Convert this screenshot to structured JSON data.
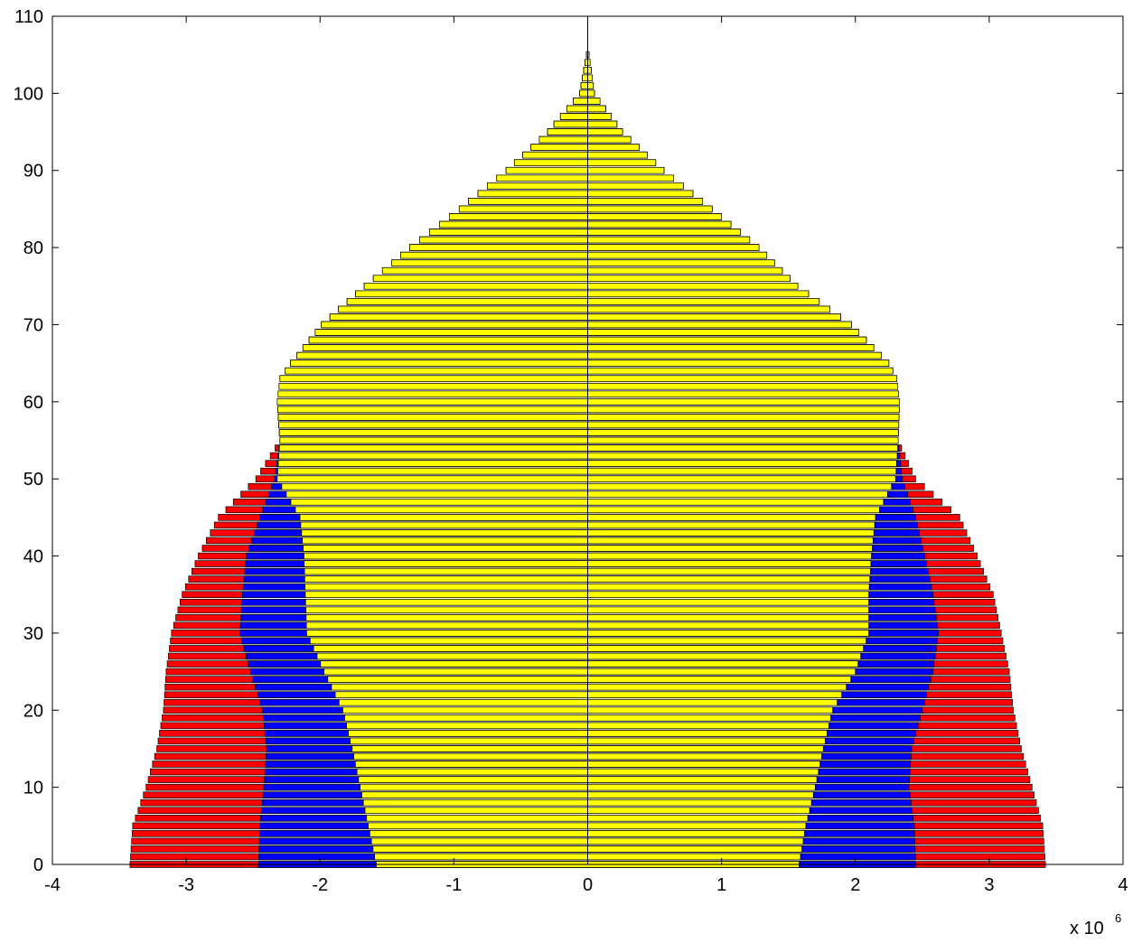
{
  "chart_data": {
    "type": "bar",
    "orientation": "horizontal",
    "stacked": "overlaid",
    "title": "",
    "xlabel": "",
    "ylabel": "",
    "x_multiplier_label": "x 10",
    "x_multiplier_exponent": "6",
    "xlim": [
      -4,
      4
    ],
    "ylim": [
      0,
      110
    ],
    "xticks": [
      -4,
      -3,
      -2,
      -1,
      0,
      1,
      2,
      3,
      4
    ],
    "yticks": [
      0,
      10,
      20,
      30,
      40,
      50,
      60,
      70,
      80,
      90,
      100,
      110
    ],
    "xtick_labels": [
      "-4",
      "-3",
      "-2",
      "-1",
      "0",
      "1",
      "2",
      "3",
      "4"
    ],
    "ytick_labels": [
      "0",
      "10",
      "20",
      "30",
      "40",
      "50",
      "60",
      "70",
      "80",
      "90",
      "100",
      "110"
    ],
    "grid": false,
    "legend": "none",
    "series": [
      {
        "color": "#ff0000",
        "left_key_ages": [
          0,
          5,
          10,
          15,
          20,
          25,
          30,
          35,
          40,
          45,
          50,
          55,
          60,
          63,
          65,
          70,
          75,
          80,
          85,
          90,
          95,
          100,
          105
        ],
        "left_key_values": [
          -3.42,
          -3.4,
          -3.3,
          -3.22,
          -3.17,
          -3.15,
          -3.11,
          -3.03,
          -2.91,
          -2.76,
          -2.48,
          -2.3,
          -2.32,
          -2.3,
          -2.22,
          -1.99,
          -1.67,
          -1.33,
          -0.96,
          -0.61,
          -0.3,
          -0.06,
          -0.01
        ],
        "right_key_ages": [
          0,
          5,
          10,
          15,
          20,
          25,
          30,
          35,
          40,
          45,
          50,
          55,
          60,
          63,
          65,
          70,
          75,
          80,
          85,
          90,
          95,
          100,
          105
        ],
        "right_key_values": [
          3.42,
          3.4,
          3.32,
          3.24,
          3.18,
          3.15,
          3.09,
          3.03,
          2.91,
          2.78,
          2.45,
          2.32,
          2.33,
          2.31,
          2.25,
          1.97,
          1.57,
          1.28,
          0.93,
          0.57,
          0.26,
          0.05,
          0.01
        ]
      },
      {
        "color": "#0000ff",
        "left_key_ages": [
          0,
          5,
          10,
          15,
          20,
          25,
          30,
          35,
          40,
          45,
          50,
          55,
          60,
          63,
          65,
          70,
          75,
          80,
          85,
          90,
          95,
          100,
          105
        ],
        "left_key_values": [
          -2.46,
          -2.45,
          -2.42,
          -2.4,
          -2.43,
          -2.52,
          -2.6,
          -2.58,
          -2.55,
          -2.45,
          -2.34,
          -2.3,
          -2.32,
          -2.3,
          -2.22,
          -1.99,
          -1.67,
          -1.33,
          -0.96,
          -0.61,
          -0.3,
          -0.06,
          -0.01
        ],
        "right_key_ages": [
          0,
          5,
          10,
          15,
          20,
          25,
          30,
          35,
          40,
          45,
          50,
          55,
          60,
          63,
          65,
          70,
          75,
          80,
          85,
          90,
          95,
          100,
          105
        ],
        "right_key_values": [
          2.45,
          2.44,
          2.4,
          2.42,
          2.5,
          2.58,
          2.62,
          2.58,
          2.52,
          2.45,
          2.35,
          2.32,
          2.33,
          2.31,
          2.25,
          1.97,
          1.57,
          1.28,
          0.93,
          0.57,
          0.26,
          0.05,
          0.01
        ]
      },
      {
        "color": "#ffff00",
        "left_key_ages": [
          0,
          5,
          10,
          15,
          20,
          25,
          30,
          35,
          40,
          45,
          50,
          55,
          60,
          63,
          65,
          70,
          75,
          80,
          85,
          90,
          95,
          100,
          105
        ],
        "left_key_values": [
          -1.58,
          -1.64,
          -1.7,
          -1.76,
          -1.83,
          -1.97,
          -2.1,
          -2.11,
          -2.12,
          -2.15,
          -2.32,
          -2.3,
          -2.32,
          -2.3,
          -2.22,
          -1.99,
          -1.67,
          -1.33,
          -0.96,
          -0.61,
          -0.3,
          -0.06,
          -0.01
        ],
        "right_key_ages": [
          0,
          5,
          10,
          15,
          20,
          25,
          30,
          35,
          40,
          45,
          50,
          55,
          60,
          63,
          65,
          70,
          75,
          80,
          85,
          90,
          95,
          100,
          105
        ],
        "right_key_values": [
          1.58,
          1.63,
          1.7,
          1.76,
          1.83,
          2.0,
          2.1,
          2.1,
          2.12,
          2.15,
          2.3,
          2.32,
          2.33,
          2.31,
          2.25,
          1.97,
          1.57,
          1.28,
          0.93,
          0.57,
          0.26,
          0.05,
          0.01
        ]
      }
    ]
  }
}
